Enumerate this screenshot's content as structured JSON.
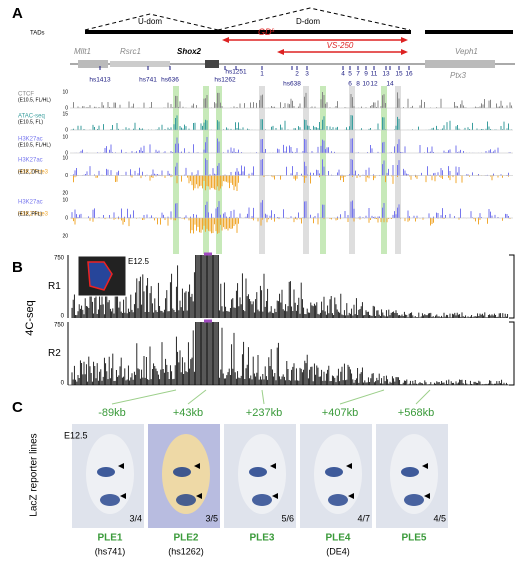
{
  "panel_a": {
    "letter": "A",
    "tads_label": "TADs",
    "u_dom": "U-dom",
    "d_dom": "D-dom",
    "gd": "GD",
    "gd_sup": "s",
    "vs250": "VS-250",
    "genes": [
      "Mllt1",
      "Rsrc1",
      "Shox2",
      "Veph1",
      "Ptx3"
    ],
    "enhancers": [
      "hs1413",
      "hs741",
      "hs636",
      "hs1251",
      "hs1262",
      "1",
      "2",
      "3",
      "hs638",
      "4",
      "5",
      "6",
      "7",
      "8",
      "9",
      "10",
      "11",
      "12",
      "13",
      "14",
      "15",
      "16"
    ],
    "tracks": [
      {
        "marks": [
          "CTCF"
        ],
        "condition": "(E10.5, FL/HL)",
        "scale": [
          10,
          0
        ]
      },
      {
        "marks": [
          "ATAC-seq"
        ],
        "condition": "(E10.5, FL)",
        "scale": [
          15,
          0
        ]
      },
      {
        "marks": [
          "H3K27ac"
        ],
        "condition": "(E10.5, FL/HL)",
        "scale": [
          10,
          0
        ]
      },
      {
        "marks": [
          "H3K27ac",
          "H3K27me3"
        ],
        "condition": "(E12, DFL)",
        "scale": [
          10,
          0,
          20
        ]
      },
      {
        "marks": [
          "H3K27ac",
          "H3K27me3"
        ],
        "condition": "(E12, PFL)",
        "scale": [
          10,
          0,
          20
        ]
      }
    ]
  },
  "panel_b": {
    "letter": "B",
    "stage": "E12.5",
    "axis_label": "4C-seq",
    "replicates": [
      "R1",
      "R2"
    ],
    "max": 750,
    "min": 0
  },
  "panel_c": {
    "letter": "C",
    "stage": "E12.5",
    "axis_label": "LacZ reporter lines",
    "distances": [
      "-89kb",
      "+43kb",
      "+237kb",
      "+407kb",
      "+568kb"
    ],
    "lines": [
      {
        "name": "PLE1",
        "alias": "(hs741)",
        "ratio": "3/4"
      },
      {
        "name": "PLE2",
        "alias": "(hs1262)",
        "ratio": "3/5"
      },
      {
        "name": "PLE3",
        "ratio": "5/6"
      },
      {
        "name": "PLE4",
        "alias": "(DE4)",
        "ratio": "4/7"
      },
      {
        "name": "PLE5",
        "ratio": "4/5"
      }
    ]
  }
}
